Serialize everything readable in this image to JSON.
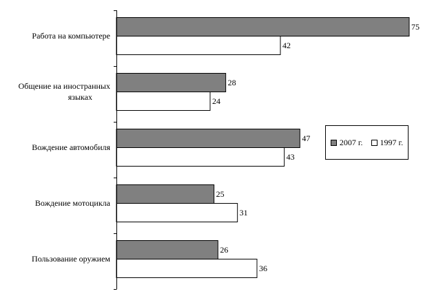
{
  "chart_data": {
    "type": "bar",
    "orientation": "horizontal",
    "categories": [
      [
        "Работа на компьютере"
      ],
      [
        "Общение на иностранных",
        "языках"
      ],
      [
        "Вождение автомобиля"
      ],
      [
        "Вождение мотоцикла"
      ],
      [
        "Пользование оружием"
      ]
    ],
    "series": [
      {
        "name": "2007 г.",
        "values": [
          75,
          28,
          47,
          25,
          26
        ],
        "color": "#808080"
      },
      {
        "name": "1997 г.",
        "values": [
          42,
          24,
          43,
          31,
          36
        ],
        "color": "#ffffff"
      }
    ],
    "xlim": [
      0,
      75
    ],
    "grid": false,
    "legend_position": "right"
  }
}
